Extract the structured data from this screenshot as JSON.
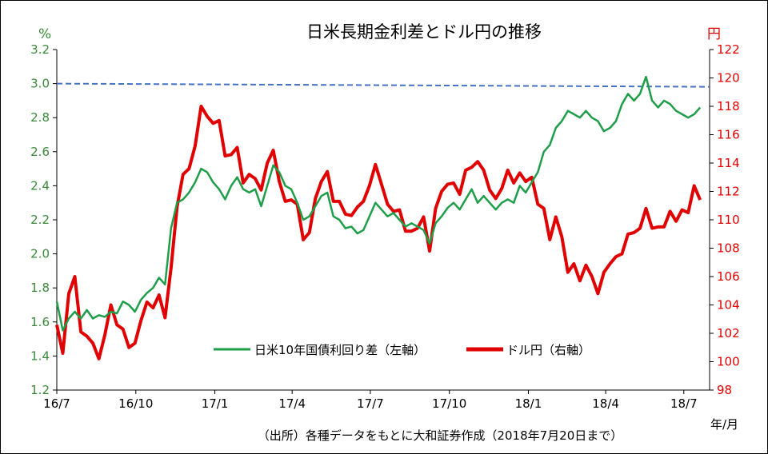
{
  "chart_data": {
    "type": "line",
    "title": "日米長期金利差とドル円の推移",
    "left_unit": "%",
    "right_unit": "円",
    "x_unit": "年/月",
    "source_note": "（出所）各種データをもとに大和証券作成（2018年7月20日まで）",
    "x_tick_labels": [
      "16/7",
      "16/10",
      "17/1",
      "17/4",
      "17/7",
      "17/10",
      "18/1",
      "18/4",
      "18/7"
    ],
    "x_range": [
      "2016-07-01",
      "2018-07-31"
    ],
    "y_left": {
      "range": [
        1.2,
        3.2
      ],
      "ticks": [
        "1.2",
        "1.4",
        "1.6",
        "1.8",
        "2.0",
        "2.2",
        "2.4",
        "2.6",
        "2.8",
        "3.0",
        "3.2"
      ]
    },
    "y_right": {
      "range": [
        98,
        122
      ],
      "ticks": [
        "98",
        "100",
        "102",
        "104",
        "106",
        "108",
        "110",
        "112",
        "114",
        "116",
        "118",
        "120",
        "122"
      ]
    },
    "reference_line": {
      "axis": "left",
      "value": 3.0,
      "style": "dashed",
      "color": "#4472c4"
    },
    "series": [
      {
        "name": "日米10年国債利回り差（左軸）",
        "axis": "left",
        "color": "#1f9e4a",
        "points": [
          [
            "2016-07-01",
            1.72
          ],
          [
            "2016-07-08",
            1.55
          ],
          [
            "2016-07-15",
            1.62
          ],
          [
            "2016-07-22",
            1.66
          ],
          [
            "2016-07-29",
            1.62
          ],
          [
            "2016-08-05",
            1.67
          ],
          [
            "2016-08-12",
            1.62
          ],
          [
            "2016-08-19",
            1.64
          ],
          [
            "2016-08-26",
            1.63
          ],
          [
            "2016-09-02",
            1.66
          ],
          [
            "2016-09-09",
            1.65
          ],
          [
            "2016-09-16",
            1.72
          ],
          [
            "2016-09-23",
            1.7
          ],
          [
            "2016-09-30",
            1.66
          ],
          [
            "2016-10-07",
            1.73
          ],
          [
            "2016-10-14",
            1.77
          ],
          [
            "2016-10-21",
            1.8
          ],
          [
            "2016-10-28",
            1.86
          ],
          [
            "2016-11-04",
            1.82
          ],
          [
            "2016-11-11",
            2.15
          ],
          [
            "2016-11-18",
            2.3
          ],
          [
            "2016-11-25",
            2.32
          ],
          [
            "2016-12-02",
            2.36
          ],
          [
            "2016-12-09",
            2.42
          ],
          [
            "2016-12-16",
            2.5
          ],
          [
            "2016-12-23",
            2.48
          ],
          [
            "2016-12-30",
            2.42
          ],
          [
            "2017-01-06",
            2.38
          ],
          [
            "2017-01-13",
            2.32
          ],
          [
            "2017-01-20",
            2.4
          ],
          [
            "2017-01-27",
            2.45
          ],
          [
            "2017-02-03",
            2.38
          ],
          [
            "2017-02-10",
            2.36
          ],
          [
            "2017-02-17",
            2.38
          ],
          [
            "2017-02-24",
            2.28
          ],
          [
            "2017-03-03",
            2.4
          ],
          [
            "2017-03-10",
            2.52
          ],
          [
            "2017-03-17",
            2.48
          ],
          [
            "2017-03-24",
            2.4
          ],
          [
            "2017-03-31",
            2.38
          ],
          [
            "2017-04-07",
            2.3
          ],
          [
            "2017-04-14",
            2.2
          ],
          [
            "2017-04-21",
            2.22
          ],
          [
            "2017-04-28",
            2.28
          ],
          [
            "2017-05-05",
            2.34
          ],
          [
            "2017-05-12",
            2.36
          ],
          [
            "2017-05-19",
            2.22
          ],
          [
            "2017-05-26",
            2.2
          ],
          [
            "2017-06-02",
            2.15
          ],
          [
            "2017-06-09",
            2.16
          ],
          [
            "2017-06-16",
            2.12
          ],
          [
            "2017-06-23",
            2.14
          ],
          [
            "2017-06-30",
            2.22
          ],
          [
            "2017-07-07",
            2.3
          ],
          [
            "2017-07-14",
            2.26
          ],
          [
            "2017-07-21",
            2.22
          ],
          [
            "2017-07-28",
            2.24
          ],
          [
            "2017-08-04",
            2.2
          ],
          [
            "2017-08-11",
            2.16
          ],
          [
            "2017-08-18",
            2.18
          ],
          [
            "2017-08-25",
            2.16
          ],
          [
            "2017-09-01",
            2.14
          ],
          [
            "2017-09-08",
            2.06
          ],
          [
            "2017-09-15",
            2.18
          ],
          [
            "2017-09-22",
            2.22
          ],
          [
            "2017-09-29",
            2.27
          ],
          [
            "2017-10-06",
            2.3
          ],
          [
            "2017-10-13",
            2.26
          ],
          [
            "2017-10-20",
            2.32
          ],
          [
            "2017-10-27",
            2.38
          ],
          [
            "2017-11-03",
            2.3
          ],
          [
            "2017-11-10",
            2.34
          ],
          [
            "2017-11-17",
            2.3
          ],
          [
            "2017-11-24",
            2.26
          ],
          [
            "2017-12-01",
            2.3
          ],
          [
            "2017-12-08",
            2.32
          ],
          [
            "2017-12-15",
            2.3
          ],
          [
            "2017-12-22",
            2.4
          ],
          [
            "2017-12-29",
            2.36
          ],
          [
            "2018-01-05",
            2.42
          ],
          [
            "2018-01-12",
            2.48
          ],
          [
            "2018-01-19",
            2.6
          ],
          [
            "2018-01-26",
            2.64
          ],
          [
            "2018-02-02",
            2.74
          ],
          [
            "2018-02-09",
            2.78
          ],
          [
            "2018-02-16",
            2.84
          ],
          [
            "2018-02-23",
            2.82
          ],
          [
            "2018-03-02",
            2.8
          ],
          [
            "2018-03-09",
            2.84
          ],
          [
            "2018-03-16",
            2.8
          ],
          [
            "2018-03-23",
            2.78
          ],
          [
            "2018-03-30",
            2.72
          ],
          [
            "2018-04-06",
            2.74
          ],
          [
            "2018-04-13",
            2.78
          ],
          [
            "2018-04-20",
            2.88
          ],
          [
            "2018-04-27",
            2.94
          ],
          [
            "2018-05-04",
            2.9
          ],
          [
            "2018-05-11",
            2.94
          ],
          [
            "2018-05-18",
            3.04
          ],
          [
            "2018-05-25",
            2.9
          ],
          [
            "2018-06-01",
            2.86
          ],
          [
            "2018-06-08",
            2.9
          ],
          [
            "2018-06-15",
            2.88
          ],
          [
            "2018-06-22",
            2.84
          ],
          [
            "2018-06-29",
            2.82
          ],
          [
            "2018-07-06",
            2.8
          ],
          [
            "2018-07-13",
            2.82
          ],
          [
            "2018-07-20",
            2.86
          ]
        ]
      },
      {
        "name": "ドル円（右軸）",
        "axis": "right",
        "color": "#e00000",
        "points": [
          [
            "2016-07-01",
            102.6
          ],
          [
            "2016-07-08",
            100.6
          ],
          [
            "2016-07-15",
            104.8
          ],
          [
            "2016-07-22",
            106.0
          ],
          [
            "2016-07-29",
            102.1
          ],
          [
            "2016-08-05",
            101.8
          ],
          [
            "2016-08-12",
            101.3
          ],
          [
            "2016-08-19",
            100.2
          ],
          [
            "2016-08-26",
            101.9
          ],
          [
            "2016-09-02",
            104.0
          ],
          [
            "2016-09-09",
            102.6
          ],
          [
            "2016-09-16",
            102.3
          ],
          [
            "2016-09-23",
            101.0
          ],
          [
            "2016-09-30",
            101.3
          ],
          [
            "2016-10-07",
            102.9
          ],
          [
            "2016-10-14",
            104.2
          ],
          [
            "2016-10-21",
            103.8
          ],
          [
            "2016-10-28",
            104.7
          ],
          [
            "2016-11-04",
            103.1
          ],
          [
            "2016-11-11",
            106.6
          ],
          [
            "2016-11-18",
            110.9
          ],
          [
            "2016-11-25",
            113.2
          ],
          [
            "2016-12-02",
            113.6
          ],
          [
            "2016-12-09",
            115.2
          ],
          [
            "2016-12-16",
            118.0
          ],
          [
            "2016-12-23",
            117.3
          ],
          [
            "2016-12-30",
            116.8
          ],
          [
            "2017-01-06",
            117.0
          ],
          [
            "2017-01-13",
            114.5
          ],
          [
            "2017-01-20",
            114.6
          ],
          [
            "2017-01-27",
            115.1
          ],
          [
            "2017-02-03",
            112.6
          ],
          [
            "2017-02-10",
            113.2
          ],
          [
            "2017-02-17",
            112.9
          ],
          [
            "2017-02-24",
            112.1
          ],
          [
            "2017-03-03",
            114.0
          ],
          [
            "2017-03-10",
            114.9
          ],
          [
            "2017-03-17",
            112.7
          ],
          [
            "2017-03-24",
            111.3
          ],
          [
            "2017-03-31",
            111.4
          ],
          [
            "2017-04-07",
            111.1
          ],
          [
            "2017-04-14",
            108.6
          ],
          [
            "2017-04-21",
            109.1
          ],
          [
            "2017-04-28",
            111.5
          ],
          [
            "2017-05-05",
            112.7
          ],
          [
            "2017-05-12",
            113.4
          ],
          [
            "2017-05-19",
            111.3
          ],
          [
            "2017-05-26",
            111.3
          ],
          [
            "2017-06-02",
            110.4
          ],
          [
            "2017-06-09",
            110.3
          ],
          [
            "2017-06-16",
            110.9
          ],
          [
            "2017-06-23",
            111.3
          ],
          [
            "2017-06-30",
            112.4
          ],
          [
            "2017-07-07",
            113.9
          ],
          [
            "2017-07-14",
            112.5
          ],
          [
            "2017-07-21",
            111.1
          ],
          [
            "2017-07-28",
            110.6
          ],
          [
            "2017-08-04",
            110.7
          ],
          [
            "2017-08-11",
            109.2
          ],
          [
            "2017-08-18",
            109.2
          ],
          [
            "2017-08-25",
            109.4
          ],
          [
            "2017-09-01",
            110.2
          ],
          [
            "2017-09-08",
            107.8
          ],
          [
            "2017-09-15",
            110.8
          ],
          [
            "2017-09-22",
            112.0
          ],
          [
            "2017-09-29",
            112.5
          ],
          [
            "2017-10-06",
            112.6
          ],
          [
            "2017-10-13",
            111.8
          ],
          [
            "2017-10-20",
            113.5
          ],
          [
            "2017-10-27",
            113.7
          ],
          [
            "2017-11-03",
            114.1
          ],
          [
            "2017-11-10",
            113.5
          ],
          [
            "2017-11-17",
            112.1
          ],
          [
            "2017-11-24",
            111.5
          ],
          [
            "2017-12-01",
            112.2
          ],
          [
            "2017-12-08",
            113.5
          ],
          [
            "2017-12-15",
            112.6
          ],
          [
            "2017-12-22",
            113.3
          ],
          [
            "2017-12-29",
            112.7
          ],
          [
            "2018-01-05",
            113.0
          ],
          [
            "2018-01-12",
            111.1
          ],
          [
            "2018-01-19",
            110.8
          ],
          [
            "2018-01-26",
            108.6
          ],
          [
            "2018-02-02",
            110.2
          ],
          [
            "2018-02-09",
            108.8
          ],
          [
            "2018-02-16",
            106.3
          ],
          [
            "2018-02-23",
            106.9
          ],
          [
            "2018-03-02",
            105.7
          ],
          [
            "2018-03-09",
            106.8
          ],
          [
            "2018-03-16",
            106.0
          ],
          [
            "2018-03-23",
            104.8
          ],
          [
            "2018-03-30",
            106.3
          ],
          [
            "2018-04-06",
            106.9
          ],
          [
            "2018-04-13",
            107.4
          ],
          [
            "2018-04-20",
            107.6
          ],
          [
            "2018-04-27",
            109.0
          ],
          [
            "2018-05-04",
            109.1
          ],
          [
            "2018-05-11",
            109.4
          ],
          [
            "2018-05-18",
            110.8
          ],
          [
            "2018-05-25",
            109.4
          ],
          [
            "2018-06-01",
            109.5
          ],
          [
            "2018-06-08",
            109.5
          ],
          [
            "2018-06-15",
            110.6
          ],
          [
            "2018-06-22",
            109.9
          ],
          [
            "2018-06-29",
            110.7
          ],
          [
            "2018-07-06",
            110.5
          ],
          [
            "2018-07-13",
            112.4
          ],
          [
            "2018-07-20",
            111.4
          ]
        ]
      }
    ],
    "legend": {
      "placement": "bottom-center",
      "items": [
        "日米10年国債利回り差（左軸）",
        "ドル円（右軸）"
      ]
    },
    "grid": false
  }
}
